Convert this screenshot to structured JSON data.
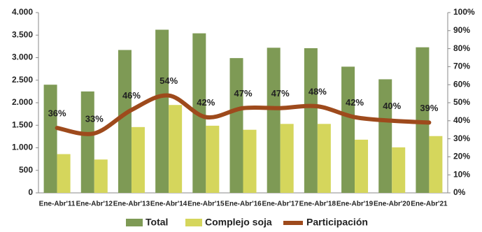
{
  "chart_data": {
    "type": "bar_line",
    "categories": [
      "Ene-Abr'11",
      "Ene-Abr'12",
      "Ene-Abr'13",
      "Ene-Abr'14",
      "Ene-Abr'15",
      "Ene-Abr'16",
      "Ene-Abr'17",
      "Ene-Abr'18",
      "Ene-Abr'19",
      "Ene-Abr'20",
      "Ene-Abr'21"
    ],
    "series": [
      {
        "name": "Total",
        "color": "#7e9a55",
        "values": [
          2400,
          2250,
          3170,
          3620,
          3540,
          2990,
          3220,
          3210,
          2800,
          2520,
          3230
        ]
      },
      {
        "name": "Complejo soja",
        "color": "#d5d65c",
        "values": [
          860,
          740,
          1460,
          1950,
          1490,
          1400,
          1530,
          1530,
          1180,
          1010,
          1260
        ]
      },
      {
        "name": "Participación",
        "color": "#9e4a1c",
        "axis": "y2",
        "values": [
          36,
          33,
          46,
          54,
          42,
          47,
          47,
          48,
          42,
          40,
          39
        ],
        "value_labels": [
          "36%",
          "33%",
          "46%",
          "54%",
          "42%",
          "47%",
          "47%",
          "48%",
          "42%",
          "40%",
          "39%"
        ]
      }
    ],
    "ylim": [
      0,
      4000
    ],
    "yticks": [
      0,
      500,
      {
        "value": 1000,
        "label": "1.000"
      },
      {
        "value": 1500,
        "label": "1.500"
      },
      {
        "value": 2000,
        "label": "2.000"
      },
      {
        "value": 2500,
        "label": "2.500"
      },
      {
        "value": 3000,
        "label": "3.000"
      },
      {
        "value": 3500,
        "label": "3.500"
      },
      {
        "value": 4000,
        "label": "4.000"
      }
    ],
    "y2lim": [
      0,
      100
    ],
    "y2ticks": [
      {
        "value": 0,
        "label": "0%"
      },
      {
        "value": 10,
        "label": "10%"
      },
      {
        "value": 20,
        "label": "20%"
      },
      {
        "value": 30,
        "label": "30%"
      },
      {
        "value": 40,
        "label": "40%"
      },
      {
        "value": 50,
        "label": "50%"
      },
      {
        "value": 60,
        "label": "60%"
      },
      {
        "value": 70,
        "label": "70%"
      },
      {
        "value": 80,
        "label": "80%"
      },
      {
        "value": 90,
        "label": "90%"
      },
      {
        "value": 100,
        "label": "100%"
      }
    ]
  }
}
